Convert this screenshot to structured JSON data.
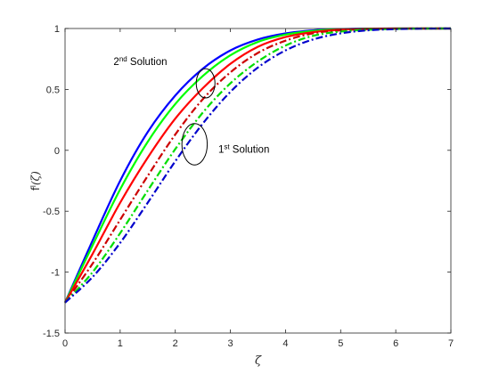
{
  "chart_data": {
    "type": "line",
    "title": "",
    "xlabel": "ζ",
    "ylabel_main": "f",
    "ylabel_sup": "I",
    "ylabel_arg": "(ζ)",
    "xlim": [
      0,
      7
    ],
    "ylim": [
      -1.5,
      1
    ],
    "xticks": [
      0,
      1,
      2,
      3,
      4,
      5,
      6,
      7
    ],
    "yticks": [
      -1.5,
      -1,
      -0.5,
      0,
      0.5,
      1
    ],
    "grid": false,
    "legend": "none",
    "annotations": [
      {
        "base": "2",
        "sup": "nd",
        "text": " Solution",
        "x": 0.88,
        "y": 0.7,
        "ellipse_center": [
          2.55,
          0.55
        ],
        "ellipse_radii": [
          0.17,
          0.12
        ]
      },
      {
        "base": "1",
        "sup": "st",
        "text": " Solution",
        "x": 2.78,
        "y": -0.02,
        "ellipse_center": [
          2.35,
          0.05
        ],
        "ellipse_radii": [
          0.23,
          0.17
        ]
      }
    ],
    "series": [
      {
        "group": "2nd Solution",
        "color": "#0000ff",
        "style": "solid",
        "x": [
          0,
          0.5,
          1,
          1.5,
          2,
          2.5,
          3,
          3.5,
          4,
          4.5,
          5,
          5.5,
          6,
          6.5,
          7
        ],
        "y": [
          -1.25,
          -0.74,
          -0.25,
          0.15,
          0.45,
          0.67,
          0.82,
          0.91,
          0.96,
          0.985,
          0.995,
          0.999,
          1,
          1,
          1
        ]
      },
      {
        "group": "2nd Solution",
        "color": "#00ff00",
        "style": "solid",
        "x": [
          0,
          0.5,
          1,
          1.5,
          2,
          2.5,
          3,
          3.5,
          4,
          4.5,
          5,
          5.5,
          6,
          6.5,
          7
        ],
        "y": [
          -1.25,
          -0.78,
          -0.32,
          0.07,
          0.38,
          0.61,
          0.78,
          0.89,
          0.95,
          0.98,
          0.993,
          0.998,
          1,
          1,
          1
        ]
      },
      {
        "group": "2nd Solution",
        "color": "#ff0000",
        "style": "solid",
        "x": [
          0,
          0.5,
          1,
          1.5,
          2,
          2.5,
          3,
          3.5,
          4,
          4.5,
          5,
          5.5,
          6,
          6.5,
          7
        ],
        "y": [
          -1.25,
          -0.85,
          -0.43,
          -0.06,
          0.26,
          0.51,
          0.71,
          0.85,
          0.93,
          0.97,
          0.99,
          0.997,
          1,
          1,
          1
        ]
      },
      {
        "group": "1st Solution",
        "color": "#cc0000",
        "style": "dashdot",
        "x": [
          0,
          0.5,
          1,
          1.5,
          2,
          2.5,
          3,
          3.5,
          4,
          4.5,
          5,
          5.5,
          6,
          6.5,
          7
        ],
        "y": [
          -1.25,
          -0.93,
          -0.57,
          -0.21,
          0.13,
          0.42,
          0.64,
          0.8,
          0.9,
          0.96,
          0.985,
          0.995,
          0.999,
          1,
          1
        ]
      },
      {
        "group": "1st Solution",
        "color": "#00dd00",
        "style": "dashdot",
        "x": [
          0,
          0.5,
          1,
          1.5,
          2,
          2.5,
          3,
          3.5,
          4,
          4.5,
          5,
          5.5,
          6,
          6.5,
          7
        ],
        "y": [
          -1.25,
          -1.0,
          -0.68,
          -0.33,
          0.01,
          0.31,
          0.55,
          0.73,
          0.86,
          0.94,
          0.975,
          0.99,
          0.997,
          1,
          1
        ]
      },
      {
        "group": "1st Solution",
        "color": "#0000cc",
        "style": "dashdot",
        "x": [
          0,
          0.5,
          1,
          1.5,
          2,
          2.5,
          3,
          3.5,
          4,
          4.5,
          5,
          5.5,
          6,
          6.5,
          7
        ],
        "y": [
          -1.25,
          -1.04,
          -0.76,
          -0.43,
          -0.09,
          0.22,
          0.48,
          0.68,
          0.82,
          0.91,
          0.96,
          0.985,
          0.995,
          0.999,
          1
        ]
      }
    ]
  }
}
